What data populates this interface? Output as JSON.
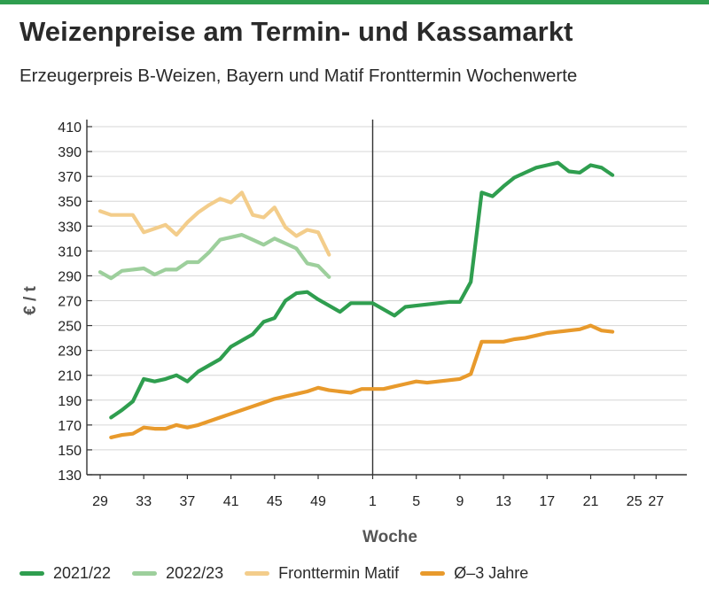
{
  "header": {
    "title": "Weizenpreise am Termin- und Kassamarkt",
    "subtitle": "Erzeugerpreis B-Weizen, Bayern und Matif Fronttermin Wochenwerte"
  },
  "colors": {
    "brand_bar": "#2f9e4f",
    "series_2021_22": "#2f9e4f",
    "series_2022_23": "#9dcf9c",
    "series_matif": "#f3cd8b",
    "series_avg3": "#e89a2c"
  },
  "chart_data": {
    "type": "line",
    "xlabel": "Woche",
    "ylabel": "€ / t",
    "ylim": [
      130,
      410
    ],
    "yticks": [
      410,
      390,
      370,
      350,
      330,
      310,
      290,
      270,
      250,
      230,
      210,
      190,
      170,
      150,
      130
    ],
    "xticks": [
      "29",
      "33",
      "37",
      "41",
      "45",
      "49",
      "1",
      "5",
      "9",
      "13",
      "17",
      "21",
      "25",
      "27"
    ],
    "x_axis_note": "Wochen 29–52, dann 1–27 (Jahreswechsel bei Woche 1, vertikale Linie)",
    "grid": "horizontal",
    "legend_position": "bottom",
    "series": [
      {
        "name": "2021/22",
        "color": "#2f9e4f",
        "points": [
          [
            30,
            176
          ],
          [
            31,
            182
          ],
          [
            32,
            189
          ],
          [
            33,
            207
          ],
          [
            34,
            205
          ],
          [
            35,
            207
          ],
          [
            36,
            210
          ],
          [
            37,
            205
          ],
          [
            38,
            213
          ],
          [
            39,
            218
          ],
          [
            40,
            223
          ],
          [
            41,
            233
          ],
          [
            42,
            238
          ],
          [
            43,
            243
          ],
          [
            44,
            253
          ],
          [
            45,
            256
          ],
          [
            46,
            270
          ],
          [
            47,
            276
          ],
          [
            48,
            277
          ],
          [
            49,
            271
          ],
          [
            50,
            266
          ],
          [
            51,
            261
          ],
          [
            52,
            268
          ],
          [
            1,
            268
          ],
          [
            2,
            263
          ],
          [
            3,
            258
          ],
          [
            4,
            265
          ],
          [
            5,
            266
          ],
          [
            6,
            267
          ],
          [
            7,
            268
          ],
          [
            8,
            269
          ],
          [
            9,
            269
          ],
          [
            10,
            285
          ],
          [
            11,
            357
          ],
          [
            12,
            354
          ],
          [
            13,
            362
          ],
          [
            14,
            369
          ],
          [
            15,
            373
          ],
          [
            16,
            377
          ],
          [
            17,
            379
          ],
          [
            18,
            381
          ],
          [
            19,
            374
          ],
          [
            20,
            373
          ],
          [
            21,
            379
          ],
          [
            22,
            377
          ],
          [
            23,
            371
          ]
        ]
      },
      {
        "name": "2022/23",
        "color": "#9dcf9c",
        "points": [
          [
            29,
            293
          ],
          [
            30,
            288
          ],
          [
            31,
            294
          ],
          [
            32,
            295
          ],
          [
            33,
            296
          ],
          [
            34,
            291
          ],
          [
            35,
            295
          ],
          [
            36,
            295
          ],
          [
            37,
            301
          ],
          [
            38,
            301
          ],
          [
            39,
            309
          ],
          [
            40,
            319
          ],
          [
            41,
            321
          ],
          [
            42,
            323
          ],
          [
            43,
            319
          ],
          [
            44,
            315
          ],
          [
            45,
            320
          ],
          [
            46,
            316
          ],
          [
            47,
            312
          ],
          [
            48,
            300
          ],
          [
            49,
            298
          ],
          [
            50,
            289
          ]
        ]
      },
      {
        "name": "Fronttermin Matif",
        "color": "#f3cd8b",
        "points": [
          [
            29,
            342
          ],
          [
            30,
            339
          ],
          [
            31,
            339
          ],
          [
            32,
            339
          ],
          [
            33,
            325
          ],
          [
            34,
            328
          ],
          [
            35,
            331
          ],
          [
            36,
            323
          ],
          [
            37,
            333
          ],
          [
            38,
            341
          ],
          [
            39,
            347
          ],
          [
            40,
            352
          ],
          [
            41,
            349
          ],
          [
            42,
            357
          ],
          [
            43,
            339
          ],
          [
            44,
            337
          ],
          [
            45,
            345
          ],
          [
            46,
            329
          ],
          [
            47,
            322
          ],
          [
            48,
            327
          ],
          [
            49,
            325
          ],
          [
            50,
            307
          ]
        ]
      },
      {
        "name": "Ø–3 Jahre",
        "color": "#e89a2c",
        "points": [
          [
            30,
            160
          ],
          [
            31,
            162
          ],
          [
            32,
            163
          ],
          [
            33,
            168
          ],
          [
            34,
            167
          ],
          [
            35,
            167
          ],
          [
            36,
            170
          ],
          [
            37,
            168
          ],
          [
            38,
            170
          ],
          [
            39,
            173
          ],
          [
            40,
            176
          ],
          [
            41,
            179
          ],
          [
            42,
            182
          ],
          [
            43,
            185
          ],
          [
            44,
            188
          ],
          [
            45,
            191
          ],
          [
            46,
            193
          ],
          [
            47,
            195
          ],
          [
            48,
            197
          ],
          [
            49,
            200
          ],
          [
            50,
            198
          ],
          [
            51,
            197
          ],
          [
            52,
            196
          ],
          [
            53,
            199
          ],
          [
            1,
            199
          ],
          [
            2,
            199
          ],
          [
            3,
            201
          ],
          [
            4,
            203
          ],
          [
            5,
            205
          ],
          [
            6,
            204
          ],
          [
            7,
            205
          ],
          [
            8,
            206
          ],
          [
            9,
            207
          ],
          [
            10,
            211
          ],
          [
            11,
            237
          ],
          [
            12,
            237
          ],
          [
            13,
            237
          ],
          [
            14,
            239
          ],
          [
            15,
            240
          ],
          [
            16,
            242
          ],
          [
            17,
            244
          ],
          [
            18,
            245
          ],
          [
            19,
            246
          ],
          [
            20,
            247
          ],
          [
            21,
            250
          ],
          [
            22,
            246
          ],
          [
            23,
            245
          ]
        ]
      }
    ]
  }
}
